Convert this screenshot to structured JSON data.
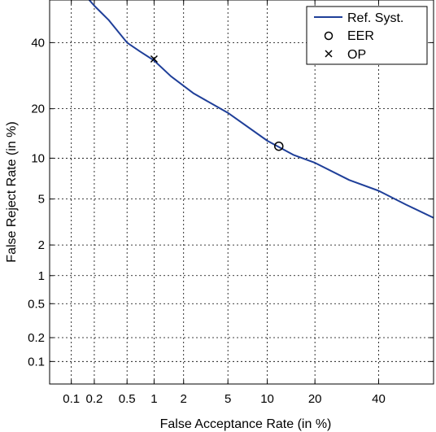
{
  "chart_data": {
    "type": "line",
    "title": "",
    "xlabel": "False Acceptance Rate (in %)",
    "ylabel": "False Reject Rate (in %)",
    "x_scale": "normal-deviate",
    "y_scale": "normal-deviate",
    "xlim": [
      0.05,
      60
    ],
    "ylim": [
      0.05,
      55
    ],
    "x_ticks": [
      0.1,
      0.2,
      0.5,
      1,
      2,
      5,
      10,
      20,
      40
    ],
    "x_tick_labels": [
      "0.1",
      "0.2",
      "0.5",
      "1",
      "2",
      "5",
      "10",
      "20",
      "40"
    ],
    "y_ticks": [
      0.1,
      0.2,
      0.5,
      1,
      2,
      5,
      10,
      20,
      40
    ],
    "y_tick_labels": [
      "0.1",
      "0.2",
      "0.5",
      "1",
      "2",
      "5",
      "10",
      "20",
      "40"
    ],
    "grid": true,
    "legend_position": "top-right",
    "series": [
      {
        "name": "Ref. Syst.",
        "color": "#1f3f99",
        "style": "line",
        "x": [
          0.16,
          0.2,
          0.3,
          0.5,
          0.7,
          1.0,
          1.5,
          2.5,
          5,
          10,
          15,
          20,
          30,
          40,
          50,
          60
        ],
        "y": [
          56,
          53,
          48,
          40,
          37,
          34,
          29,
          24,
          19,
          13,
          10.5,
          9.3,
          7,
          5.8,
          4.5,
          3.5
        ]
      },
      {
        "name": "EER",
        "style": "marker",
        "marker": "circle",
        "x": [
          12
        ],
        "y": [
          12
        ]
      },
      {
        "name": "OP",
        "style": "marker",
        "marker": "cross",
        "x": [
          1
        ],
        "y": [
          34.5
        ]
      }
    ]
  }
}
